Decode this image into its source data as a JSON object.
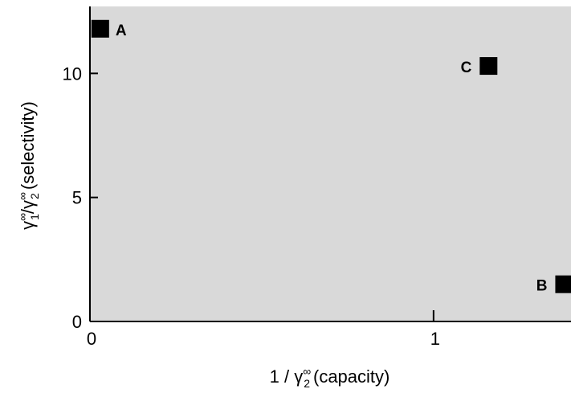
{
  "chart_data": {
    "type": "scatter",
    "xlim": [
      0,
      1.4
    ],
    "ylim": [
      0,
      12.7
    ],
    "grid": false,
    "x_ticks": [
      {
        "value": 0,
        "label": "0"
      },
      {
        "value": 1,
        "label": "1"
      }
    ],
    "y_ticks": [
      {
        "value": 0,
        "label": "0"
      },
      {
        "value": 5,
        "label": "5"
      },
      {
        "value": 10,
        "label": "10"
      }
    ],
    "xlabel": {
      "prefix": "1 / γ",
      "sup": "∞",
      "sub": "2",
      "suffix": "(capacity)"
    },
    "ylabel": {
      "a_base": "γ",
      "a_sup": "∞",
      "a_sub": "1",
      "sep": "/",
      "b_base": "γ",
      "b_sup": "∞",
      "b_sub": "2",
      "suffix": "(selectivity)"
    },
    "points": [
      {
        "label": "A",
        "x": 0.03,
        "y": 11.8
      },
      {
        "label": "C",
        "x": 1.16,
        "y": 10.3
      },
      {
        "label": "B",
        "x": 1.38,
        "y": 1.5
      }
    ]
  },
  "colors": {
    "plot_background": "#d9d9d9",
    "marker": "#000000",
    "axis": "#000000"
  }
}
